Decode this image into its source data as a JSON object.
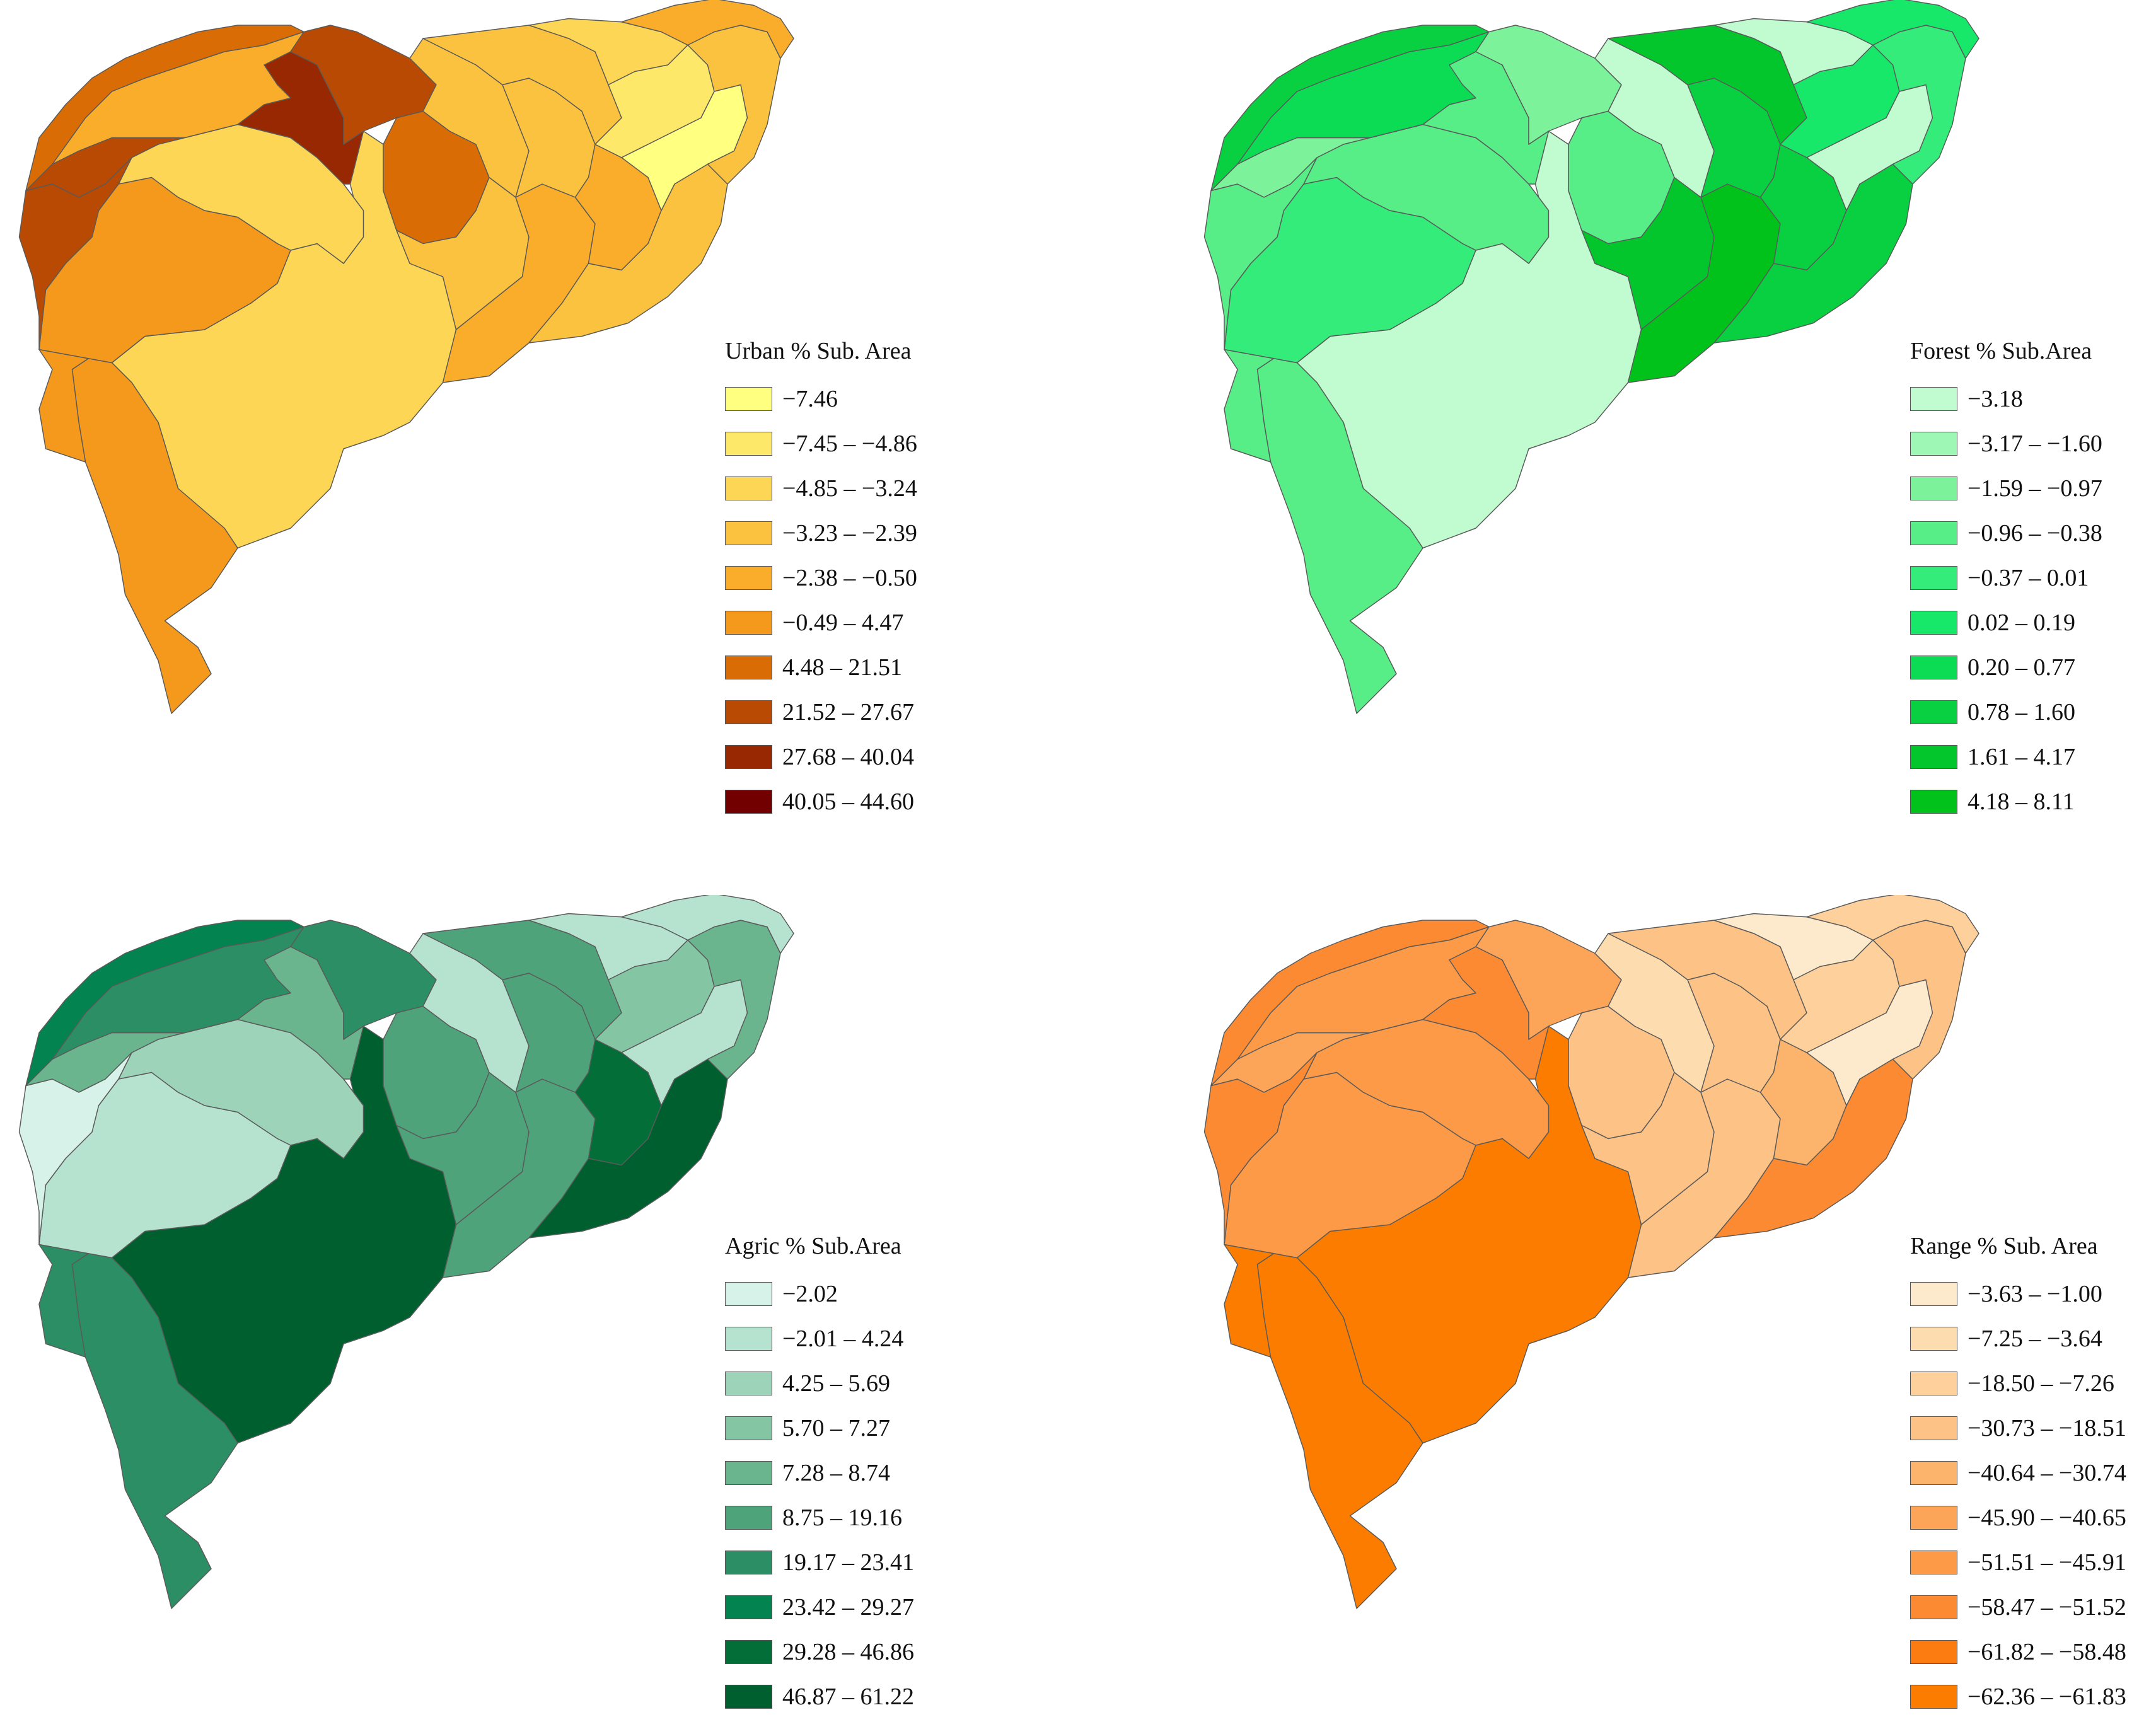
{
  "maps": [
    {
      "id": "urban",
      "legend": {
        "title": "Urban % Sub. Area",
        "classes": [
          {
            "label": "−7.46",
            "color": "#ffff80"
          },
          {
            "label": "−7.45 – −4.86",
            "color": "#fde869"
          },
          {
            "label": "−4.85 – −3.24",
            "color": "#fcd654"
          },
          {
            "label": "−3.23 – −2.39",
            "color": "#fbc23f"
          },
          {
            "label": "−2.38 – −0.50",
            "color": "#f9ad2b"
          },
          {
            "label": "−0.49 – 4.47",
            "color": "#f5991d"
          },
          {
            "label": "4.48 – 21.51",
            "color": "#d96c05"
          },
          {
            "label": "21.52 – 27.67",
            "color": "#b84a03"
          },
          {
            "label": "27.68 – 40.04",
            "color": "#972802"
          },
          {
            "label": "40.05 – 44.60",
            "color": "#730000"
          }
        ]
      },
      "subbasin_classes": [
        3,
        6,
        6,
        6,
        3,
        8,
        8,
        9,
        5,
        7,
        8,
        7,
        4,
        5,
        4,
        4,
        5,
        4,
        4,
        3,
        2,
        1,
        4,
        5
      ]
    },
    {
      "id": "forest",
      "legend": {
        "title": "Forest % Sub.Area",
        "classes": [
          {
            "label": "−3.18",
            "color": "#c0fcd0"
          },
          {
            "label": "−3.17 – −1.60",
            "color": "#9ef7b4"
          },
          {
            "label": "−1.59 – −0.97",
            "color": "#7cf29b"
          },
          {
            "label": "−0.96 – −0.38",
            "color": "#57ee87"
          },
          {
            "label": "−0.37 – 0.01",
            "color": "#33ec79"
          },
          {
            "label": "0.02 – 0.19",
            "color": "#18e86a"
          },
          {
            "label": "0.20 – 0.77",
            "color": "#0cdc54"
          },
          {
            "label": "0.78 – 1.60",
            "color": "#08d040"
          },
          {
            "label": "1.61 – 4.17",
            "color": "#03c62c"
          },
          {
            "label": "4.18 – 8.11",
            "color": "#00c21a"
          }
        ]
      },
      "subbasin_classes": [
        1,
        4,
        4,
        5,
        4,
        4,
        3,
        4,
        7,
        8,
        3,
        4,
        9,
        10,
        1,
        8,
        8,
        8,
        9,
        1,
        6,
        1,
        5,
        6
      ]
    },
    {
      "id": "agric",
      "legend": {
        "title": "Agric % Sub.Area",
        "classes": [
          {
            "label": "−2.02",
            "color": "#d7f2e8"
          },
          {
            "label": "−2.01 – 4.24",
            "color": "#b6e3d0"
          },
          {
            "label": "4.25 – 5.69",
            "color": "#9dd3b8"
          },
          {
            "label": "5.70 – 7.27",
            "color": "#84c5a4"
          },
          {
            "label": "7.28 – 8.74",
            "color": "#6ab58e"
          },
          {
            "label": "8.75 – 19.16",
            "color": "#4fa37a"
          },
          {
            "label": "19.17 – 23.41",
            "color": "#2c8e64"
          },
          {
            "label": "23.42 – 29.27",
            "color": "#038350"
          },
          {
            "label": "29.28 – 46.86",
            "color": "#036e37"
          },
          {
            "label": "46.87 – 61.22",
            "color": "#005f2f"
          }
        ]
      },
      "subbasin_classes": [
        10,
        7,
        7,
        2,
        3,
        1,
        5,
        5,
        7,
        8,
        7,
        6,
        6,
        6,
        2,
        6,
        9,
        10,
        6,
        2,
        4,
        2,
        5,
        2
      ]
    },
    {
      "id": "range",
      "legend": {
        "title": "Range % Sub. Area",
        "classes": [
          {
            "label": "−3.63 – −1.00",
            "color": "#fde9cb"
          },
          {
            "label": "−7.25 – −3.64",
            "color": "#fddcb0"
          },
          {
            "label": "−18.50 – −7.26",
            "color": "#fdd09c"
          },
          {
            "label": "−30.73 – −18.51",
            "color": "#fcc286"
          },
          {
            "label": "−40.64 – −30.74",
            "color": "#fcb46c"
          },
          {
            "label": "−45.90 – −40.65",
            "color": "#fca458"
          },
          {
            "label": "−51.51 – −45.91",
            "color": "#fc9a48"
          },
          {
            "label": "−58.47 – −51.52",
            "color": "#fc8a32"
          },
          {
            "label": "−61.82 – −58.48",
            "color": "#fc7c12"
          },
          {
            "label": "−62.36 – −61.83",
            "color": "#fc7c00"
          }
        ]
      },
      "subbasin_classes": [
        10,
        10,
        10,
        7,
        7,
        8,
        6,
        8,
        7,
        8,
        6,
        4,
        4,
        4,
        2,
        4,
        5,
        8,
        4,
        1,
        3,
        1,
        4,
        3
      ]
    }
  ]
}
